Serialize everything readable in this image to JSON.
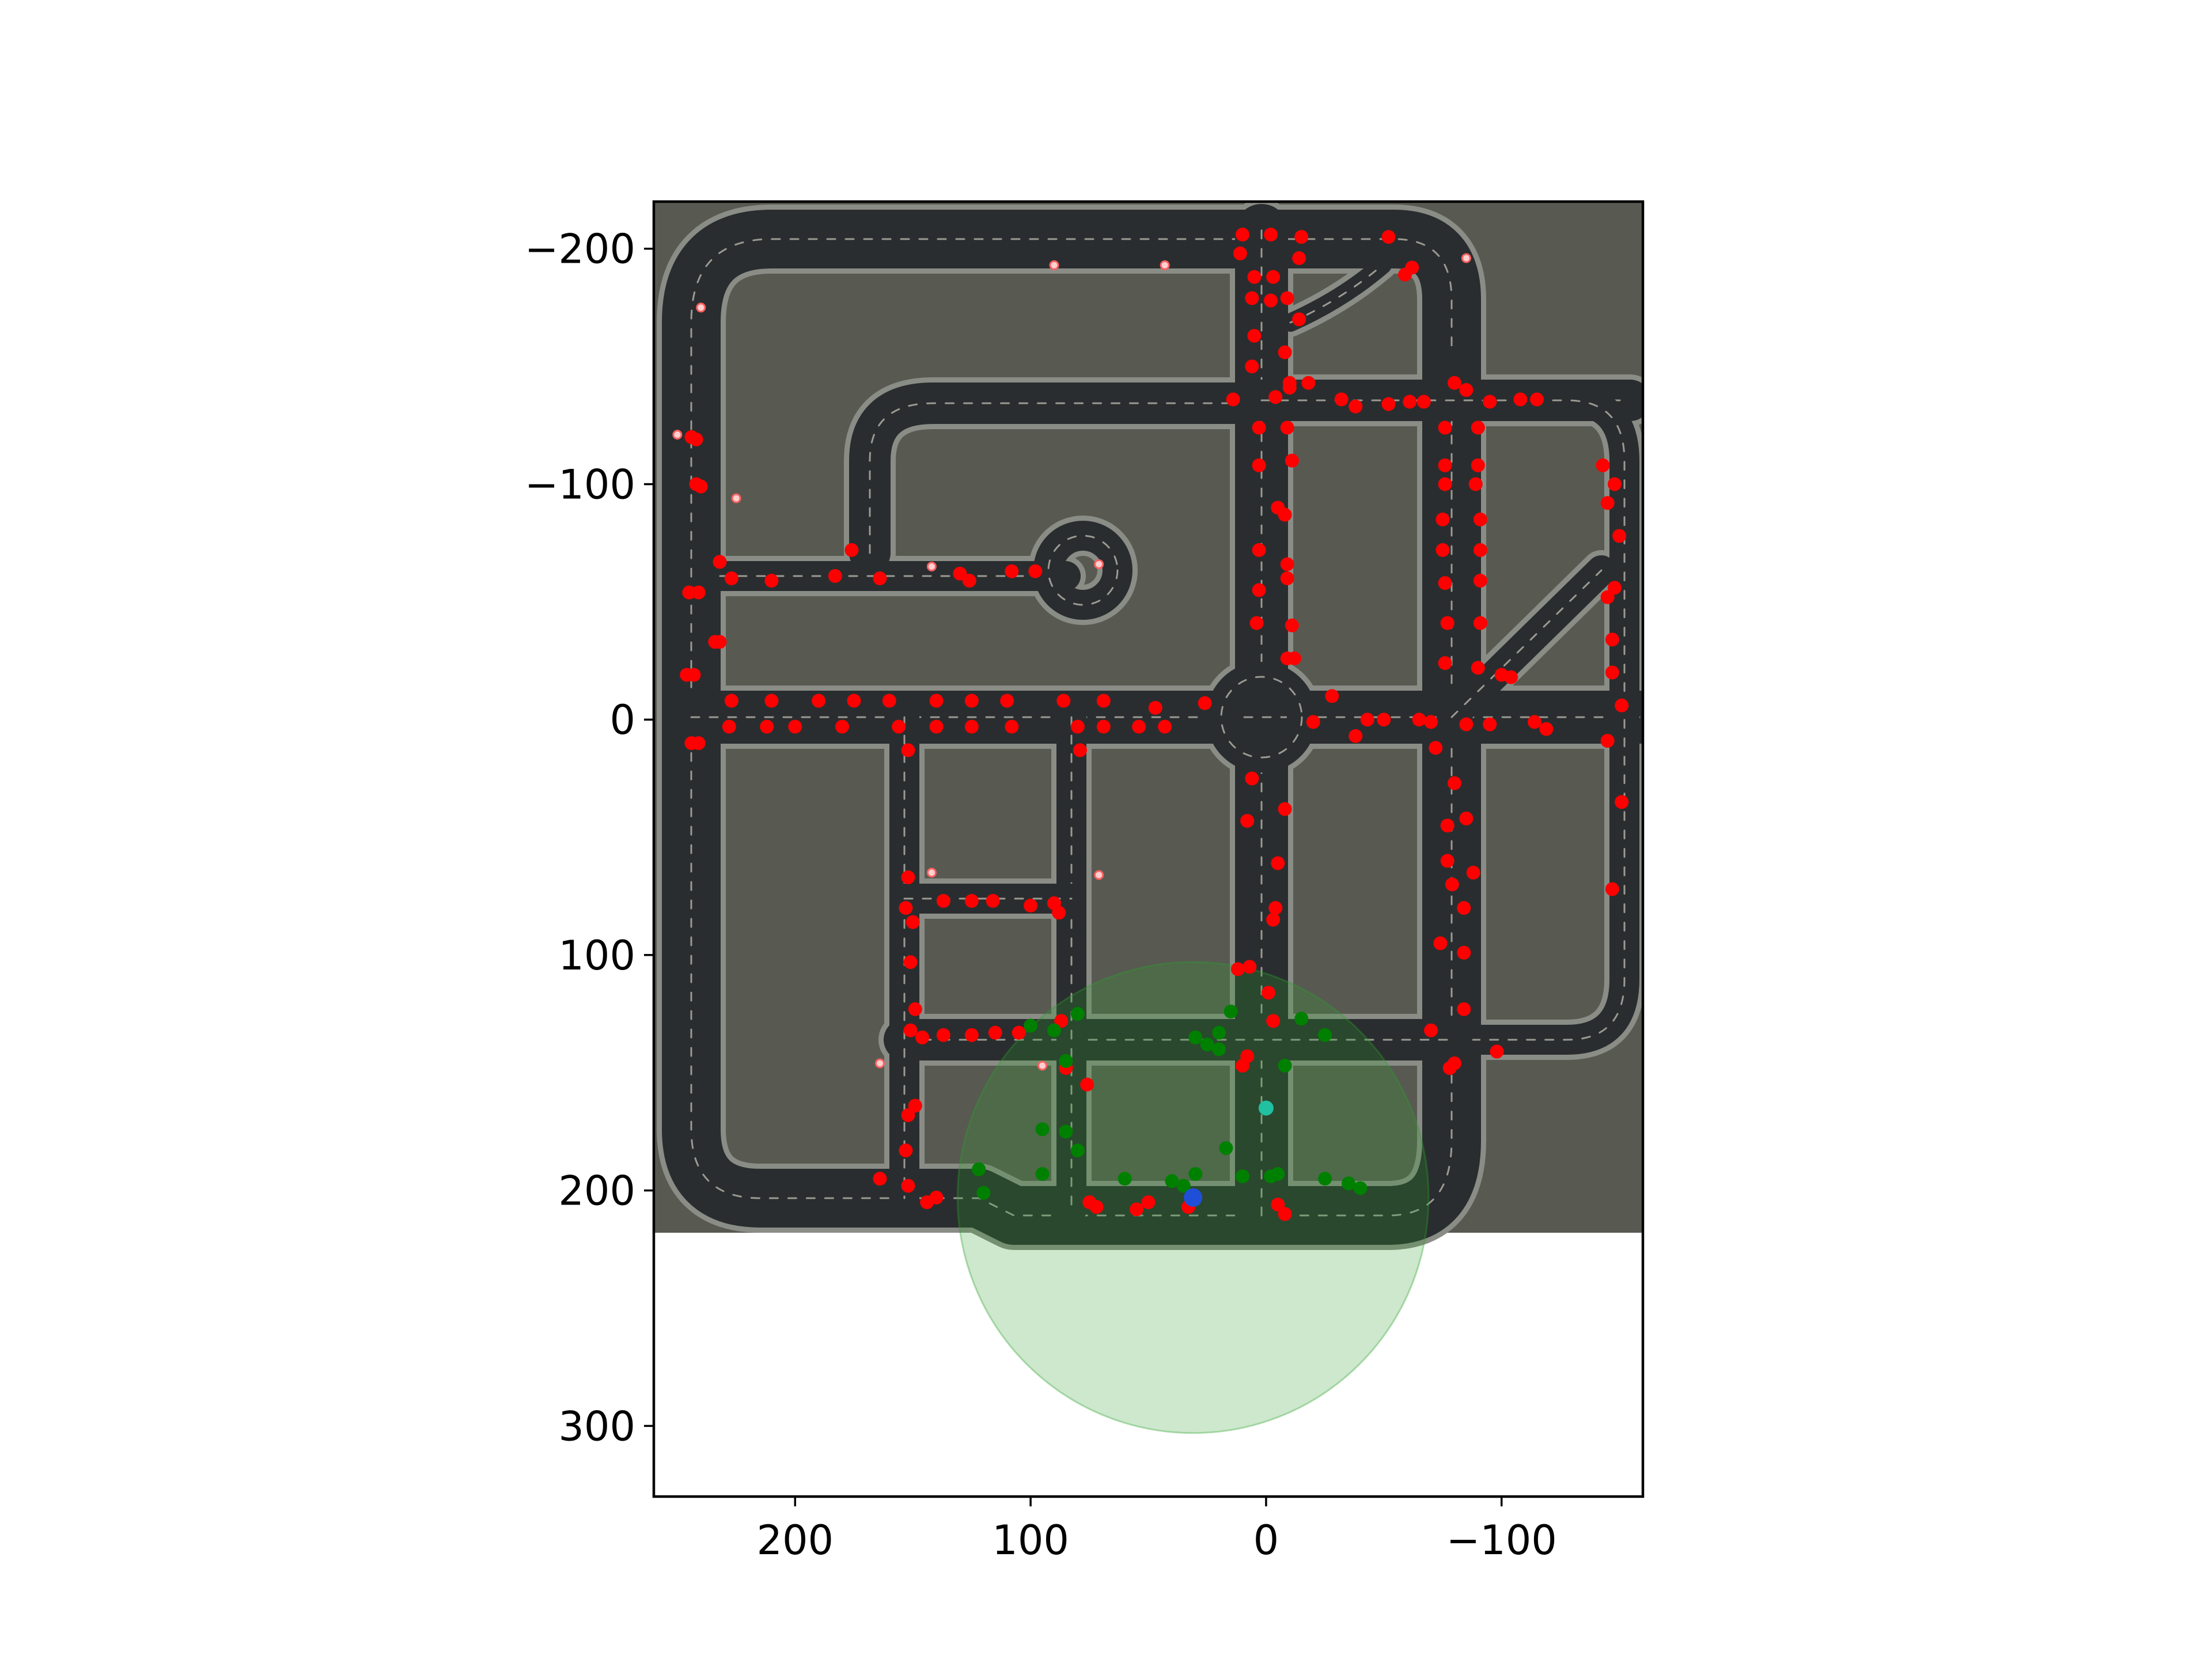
{
  "figure": {
    "background": "#ffffff",
    "map_background": "#585a52",
    "road_color": "#2a2d2f",
    "road_edge_color": "#8a8c86",
    "lane_marking_color": "#9a9a92"
  },
  "axes": {
    "x_axis": {
      "inverted": true,
      "range": [
        260,
        -160
      ],
      "ticks": [
        200,
        100,
        0,
        -100
      ],
      "tick_labels": [
        "200",
        "100",
        "0",
        "−100"
      ]
    },
    "y_axis": {
      "inverted": true,
      "range": [
        -220,
        330
      ],
      "ticks": [
        -200,
        -100,
        0,
        100,
        200,
        300
      ],
      "tick_labels": [
        "−200",
        "−100",
        "0",
        "100",
        "200",
        "300"
      ]
    },
    "map_extent": {
      "x": [
        260,
        -160
      ],
      "y": [
        -220,
        220
      ]
    }
  },
  "colors": {
    "vehicles_out_of_range": "#ff0000",
    "vehicles_in_range": "#008000",
    "ego_vehicle": "#1f4fd8",
    "target_point": "#20c0a0",
    "sensing_circle_fill": "#2ca02c",
    "sensing_circle_opacity": 0.24,
    "parked_marker": "#ffd0d0"
  },
  "map_data": {
    "sensing_circle": {
      "center": [
        31,
        203
      ],
      "radius": 100
    },
    "ego": [
      31,
      203
    ],
    "target": [
      0,
      165
    ],
    "red_vehicles": [
      [
        10,
        -206
      ],
      [
        -2,
        -206
      ],
      [
        -15,
        -205
      ],
      [
        -52,
        -205
      ],
      [
        11,
        -198
      ],
      [
        -14,
        -196
      ],
      [
        -62,
        -192
      ],
      [
        -59,
        -189
      ],
      [
        5,
        -188
      ],
      [
        -3,
        -188
      ],
      [
        6,
        -179
      ],
      [
        -9,
        -179
      ],
      [
        -2,
        -178
      ],
      [
        -14,
        -170
      ],
      [
        5,
        -163
      ],
      [
        -8,
        -156
      ],
      [
        6,
        -150
      ],
      [
        -10,
        -143
      ],
      [
        -18,
        -143
      ],
      [
        -10,
        -141
      ],
      [
        14,
        -136
      ],
      [
        -4,
        -137
      ],
      [
        -32,
        -136
      ],
      [
        -38,
        -133
      ],
      [
        -52,
        -134
      ],
      [
        -61,
        -135
      ],
      [
        -67,
        -135
      ],
      [
        -80,
        -143
      ],
      [
        -85,
        -140
      ],
      [
        -95,
        -135
      ],
      [
        -108,
        -136
      ],
      [
        -115,
        -136
      ],
      [
        3,
        -124
      ],
      [
        -9,
        -124
      ],
      [
        -76,
        -124
      ],
      [
        -90,
        -124
      ],
      [
        3,
        -108
      ],
      [
        -11,
        -110
      ],
      [
        -76,
        -108
      ],
      [
        -90,
        -108
      ],
      [
        -8,
        -87
      ],
      [
        -5,
        -90
      ],
      [
        -76,
        -100
      ],
      [
        -89,
        -100
      ],
      [
        -75,
        -85
      ],
      [
        -91,
        -85
      ],
      [
        -75,
        -72
      ],
      [
        -91,
        -72
      ],
      [
        3,
        -72
      ],
      [
        -9,
        -66
      ],
      [
        3,
        -55
      ],
      [
        -9,
        -60
      ],
      [
        -76,
        -58
      ],
      [
        -91,
        -59
      ],
      [
        4,
        -41
      ],
      [
        -11,
        -40
      ],
      [
        -77,
        -41
      ],
      [
        -91,
        -41
      ],
      [
        -9,
        -26
      ],
      [
        -12,
        -26
      ],
      [
        -76,
        -24
      ],
      [
        -90,
        -22
      ],
      [
        -100,
        -19
      ],
      [
        -104,
        -18
      ],
      [
        242,
        -119
      ],
      [
        244,
        -120
      ],
      [
        242,
        -100
      ],
      [
        240,
        -99
      ],
      [
        245,
        -54
      ],
      [
        241,
        -54
      ],
      [
        234,
        -33
      ],
      [
        232,
        -33
      ],
      [
        243,
        -19
      ],
      [
        246,
        -19
      ],
      [
        244,
        10
      ],
      [
        241,
        10
      ],
      [
        232,
        -67
      ],
      [
        227,
        -60
      ],
      [
        210,
        -59
      ],
      [
        183,
        -61
      ],
      [
        176,
        -72
      ],
      [
        164,
        -60
      ],
      [
        130,
        -62
      ],
      [
        126,
        -59
      ],
      [
        108,
        -63
      ],
      [
        98,
        -63
      ],
      [
        227,
        -8
      ],
      [
        210,
        -8
      ],
      [
        190,
        -8
      ],
      [
        175,
        -8
      ],
      [
        160,
        -8
      ],
      [
        140,
        -8
      ],
      [
        125,
        -8
      ],
      [
        110,
        -8
      ],
      [
        86,
        -8
      ],
      [
        69,
        -8
      ],
      [
        47,
        -5
      ],
      [
        26,
        -7
      ],
      [
        228,
        3
      ],
      [
        212,
        3
      ],
      [
        200,
        3
      ],
      [
        180,
        3
      ],
      [
        156,
        3
      ],
      [
        140,
        3
      ],
      [
        125,
        3
      ],
      [
        108,
        3
      ],
      [
        80,
        3
      ],
      [
        69,
        3
      ],
      [
        54,
        3
      ],
      [
        43,
        3
      ],
      [
        152,
        13
      ],
      [
        79,
        13
      ],
      [
        -20,
        1
      ],
      [
        -28,
        -10
      ],
      [
        -38,
        7
      ],
      [
        -43,
        0
      ],
      [
        -50,
        0
      ],
      [
        -65,
        0
      ],
      [
        -70,
        1
      ],
      [
        -85,
        2
      ],
      [
        -95,
        2
      ],
      [
        -114,
        1
      ],
      [
        -119,
        4
      ],
      [
        -143,
        -108
      ],
      [
        -148,
        -100
      ],
      [
        -145,
        -92
      ],
      [
        -150,
        -78
      ],
      [
        -148,
        -56
      ],
      [
        -145,
        -52
      ],
      [
        -147,
        -34
      ],
      [
        -147,
        -20
      ],
      [
        -151,
        -6
      ],
      [
        -145,
        9
      ],
      [
        -151,
        35
      ],
      [
        -147,
        72
      ],
      [
        -72,
        12
      ],
      [
        -80,
        27
      ],
      [
        -77,
        45
      ],
      [
        -85,
        42
      ],
      [
        -77,
        60
      ],
      [
        -88,
        65
      ],
      [
        -79,
        70
      ],
      [
        -84,
        80
      ],
      [
        -74,
        95
      ],
      [
        -84,
        99
      ],
      [
        -84,
        123
      ],
      [
        -70,
        132
      ],
      [
        -78,
        148
      ],
      [
        -80,
        146
      ],
      [
        -98,
        141
      ],
      [
        6,
        25
      ],
      [
        -8,
        38
      ],
      [
        8,
        43
      ],
      [
        -5,
        61
      ],
      [
        -4,
        80
      ],
      [
        -3,
        85
      ],
      [
        7,
        105
      ],
      [
        12,
        106
      ],
      [
        -1,
        116
      ],
      [
        -3,
        128
      ],
      [
        8,
        143
      ],
      [
        10,
        147
      ],
      [
        152,
        67
      ],
      [
        153,
        80
      ],
      [
        137,
        77
      ],
      [
        125,
        77
      ],
      [
        116,
        77
      ],
      [
        100,
        79
      ],
      [
        90,
        78
      ],
      [
        88,
        82
      ],
      [
        150,
        86
      ],
      [
        151,
        103
      ],
      [
        149,
        123
      ],
      [
        151,
        132
      ],
      [
        146,
        135
      ],
      [
        137,
        134
      ],
      [
        125,
        134
      ],
      [
        115,
        133
      ],
      [
        105,
        133
      ],
      [
        87,
        128
      ],
      [
        85,
        148
      ],
      [
        76,
        155
      ],
      [
        149,
        164
      ],
      [
        152,
        168
      ],
      [
        153,
        183
      ],
      [
        164,
        195
      ],
      [
        152,
        198
      ],
      [
        140,
        203
      ],
      [
        144,
        205
      ],
      [
        75,
        205
      ],
      [
        72,
        207
      ],
      [
        50,
        205
      ],
      [
        55,
        208
      ],
      [
        -5,
        206
      ],
      [
        -8,
        210
      ],
      [
        33,
        207
      ]
    ],
    "green_vehicles": [
      [
        122,
        191
      ],
      [
        120,
        201
      ],
      [
        95,
        193
      ],
      [
        95,
        174
      ],
      [
        80,
        183
      ],
      [
        85,
        175
      ],
      [
        60,
        195
      ],
      [
        40,
        196
      ],
      [
        30,
        193
      ],
      [
        10,
        194
      ],
      [
        -5,
        193
      ],
      [
        -25,
        195
      ],
      [
        -35,
        197
      ],
      [
        -40,
        199
      ],
      [
        20,
        140
      ],
      [
        15,
        124
      ],
      [
        -15,
        127
      ],
      [
        -25,
        134
      ],
      [
        20,
        133
      ],
      [
        90,
        132
      ],
      [
        85,
        145
      ],
      [
        80,
        125
      ],
      [
        100,
        130
      ],
      [
        -8,
        147
      ],
      [
        30,
        135
      ],
      [
        25,
        138
      ],
      [
        17,
        182
      ],
      [
        35,
        198
      ],
      [
        -2,
        194
      ]
    ],
    "parked_markers": [
      [
        90,
        -193
      ],
      [
        43,
        -193
      ],
      [
        -85,
        -196
      ],
      [
        240,
        -175
      ],
      [
        250,
        -121
      ],
      [
        225,
        -94
      ],
      [
        142,
        -65
      ],
      [
        71,
        -66
      ],
      [
        142,
        65
      ],
      [
        71,
        66
      ],
      [
        164,
        146
      ],
      [
        95,
        147
      ]
    ]
  }
}
